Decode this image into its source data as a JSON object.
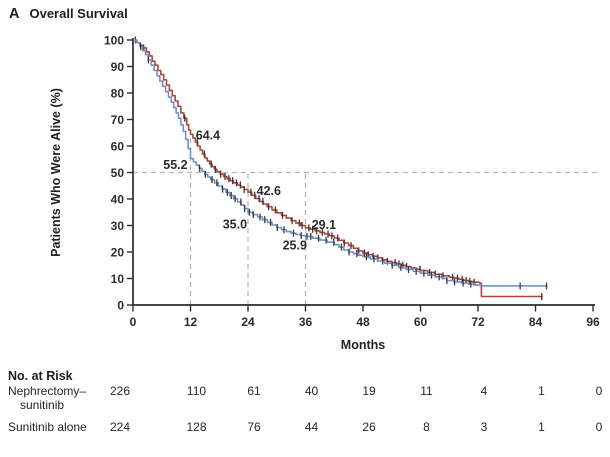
{
  "title": {
    "panel_letter": "A",
    "text": "Overall Survival"
  },
  "chart_data": {
    "type": "line",
    "subtype": "kaplan-meier-step",
    "title": "Overall Survival",
    "xlabel": "Months",
    "ylabel": "Patients Who Were Alive (%)",
    "xlim": [
      0,
      96
    ],
    "ylim": [
      0,
      100
    ],
    "x_ticks": [
      0,
      12,
      24,
      36,
      48,
      60,
      72,
      84,
      96
    ],
    "y_ticks": [
      0,
      10,
      20,
      30,
      40,
      50,
      60,
      70,
      80,
      90,
      100
    ],
    "grid": false,
    "legend": "none",
    "reference_lines": {
      "horizontal_pct": 50,
      "vertical": [
        {
          "month": 12,
          "top_pct": 64.4
        },
        {
          "month": 24,
          "top_pct": 50
        },
        {
          "month": 36,
          "top_pct": 50
        }
      ]
    },
    "landmark_survival": {
      "months": [
        12,
        24,
        36
      ],
      "nephrectomy_sunitinib_pct": [
        64.4,
        42.6,
        29.1
      ],
      "sunitinib_alone_pct": [
        55.2,
        35.0,
        25.9
      ]
    },
    "annotations": [
      {
        "label": "64.4",
        "month": 13.1,
        "pct": 62.5,
        "anchor": "start"
      },
      {
        "label": "55.2",
        "month": 11.4,
        "pct": 51.3,
        "anchor": "end"
      },
      {
        "label": "42.6",
        "month": 25.8,
        "pct": 41.6,
        "anchor": "start"
      },
      {
        "label": "35.0",
        "month": 23.8,
        "pct": 28.8,
        "anchor": "end"
      },
      {
        "label": "29.1",
        "month": 37.3,
        "pct": 28.6,
        "anchor": "start"
      },
      {
        "label": "25.9",
        "month": 36.3,
        "pct": 21.0,
        "anchor": "end"
      }
    ],
    "series": [
      {
        "name": "Nephrectomy–sunitinib",
        "color": "#b0463a",
        "points": [
          [
            0,
            100
          ],
          [
            0.8,
            99
          ],
          [
            1.5,
            98
          ],
          [
            2.2,
            97
          ],
          [
            2.8,
            95.5
          ],
          [
            3.4,
            94
          ],
          [
            4,
            92
          ],
          [
            4.6,
            90.5
          ],
          [
            5.2,
            88.5
          ],
          [
            5.8,
            87
          ],
          [
            6.4,
            85
          ],
          [
            7,
            83
          ],
          [
            7.6,
            81
          ],
          [
            8.2,
            79
          ],
          [
            8.8,
            77
          ],
          [
            9.4,
            75
          ],
          [
            10,
            72.5
          ],
          [
            10.6,
            70.5
          ],
          [
            11.2,
            68
          ],
          [
            11.6,
            66
          ],
          [
            12,
            64.4
          ],
          [
            12.5,
            63
          ],
          [
            13,
            61.5
          ],
          [
            13.5,
            60
          ],
          [
            14,
            58.5
          ],
          [
            14.5,
            57
          ],
          [
            15,
            55.5
          ],
          [
            15.5,
            54.3
          ],
          [
            16,
            53.2
          ],
          [
            16.5,
            52.2
          ],
          [
            17,
            51.2
          ],
          [
            17.5,
            50.3
          ],
          [
            18.2,
            49.4
          ],
          [
            18.9,
            48.5
          ],
          [
            19.6,
            47.7
          ],
          [
            20.3,
            46.9
          ],
          [
            21,
            46.1
          ],
          [
            21.8,
            45.3
          ],
          [
            22.5,
            44.5
          ],
          [
            23.2,
            43.6
          ],
          [
            24,
            42.6
          ],
          [
            24.8,
            41.4
          ],
          [
            25.6,
            40.2
          ],
          [
            26.4,
            39.1
          ],
          [
            27.2,
            38.1
          ],
          [
            28,
            37.1
          ],
          [
            29,
            35.9
          ],
          [
            30,
            34.8
          ],
          [
            31,
            33.8
          ],
          [
            32,
            32.8
          ],
          [
            33,
            31.8
          ],
          [
            34,
            30.9
          ],
          [
            35,
            30
          ],
          [
            36,
            29.1
          ],
          [
            37,
            28.6
          ],
          [
            38,
            28
          ],
          [
            39,
            27.4
          ],
          [
            40,
            26.8
          ],
          [
            41,
            26.1
          ],
          [
            42,
            25.3
          ],
          [
            43,
            24.4
          ],
          [
            44,
            23.4
          ],
          [
            45,
            22.4
          ],
          [
            46,
            21.4
          ],
          [
            47,
            20.4
          ],
          [
            48,
            19.6
          ],
          [
            49,
            19
          ],
          [
            50,
            18.4
          ],
          [
            51,
            17.8
          ],
          [
            52,
            17.1
          ],
          [
            53,
            16.5
          ],
          [
            54,
            16
          ],
          [
            55,
            15.5
          ],
          [
            56,
            15
          ],
          [
            57,
            14.5
          ],
          [
            58,
            14
          ],
          [
            59,
            13.5
          ],
          [
            60,
            13
          ],
          [
            61.5,
            12.3
          ],
          [
            63,
            11.6
          ],
          [
            64.5,
            11
          ],
          [
            66,
            10.5
          ],
          [
            67,
            10.1
          ],
          [
            68,
            9.7
          ],
          [
            69,
            9.3
          ],
          [
            70,
            8.9
          ],
          [
            71,
            8.6
          ],
          [
            72.3,
            8.3
          ],
          [
            72.7,
            3.2
          ],
          [
            85.5,
            3.2
          ]
        ],
        "censor_months": [
          0.5,
          2.2,
          10.8,
          13.4,
          14.9,
          16.3,
          17.2,
          18.3,
          19.2,
          20,
          20.8,
          21.6,
          22.4,
          23.2,
          24.6,
          25.4,
          26.3,
          27.1,
          28.3,
          29.7,
          31.2,
          33.2,
          34.7,
          35.3,
          36.7,
          37.5,
          38.3,
          39.5,
          40.7,
          41.5,
          42.7,
          44.1,
          45.5,
          47.1,
          48.3,
          49.1,
          50.1,
          51.1,
          53.1,
          54.7,
          55.5,
          56.3,
          57.1,
          59.9,
          61.9,
          63.1,
          64.7,
          66.7,
          67.7,
          68.7,
          69.5,
          70.3,
          71.2,
          85.3
        ]
      },
      {
        "name": "Sunitinib alone",
        "color": "#7092c2",
        "points": [
          [
            0,
            100
          ],
          [
            0.7,
            99
          ],
          [
            1.4,
            97.5
          ],
          [
            2,
            96
          ],
          [
            2.6,
            94.5
          ],
          [
            3.2,
            92.5
          ],
          [
            3.8,
            90.5
          ],
          [
            4.4,
            88.5
          ],
          [
            5,
            86.5
          ],
          [
            5.6,
            84.5
          ],
          [
            6.2,
            82.5
          ],
          [
            6.8,
            80.5
          ],
          [
            7.4,
            78.5
          ],
          [
            8,
            76.5
          ],
          [
            8.5,
            74.5
          ],
          [
            9,
            72.5
          ],
          [
            9.5,
            70.5
          ],
          [
            10,
            68
          ],
          [
            10.5,
            65.5
          ],
          [
            11,
            62.5
          ],
          [
            11.5,
            59
          ],
          [
            12,
            55.2
          ],
          [
            12.6,
            54
          ],
          [
            13.2,
            52.8
          ],
          [
            13.8,
            51.6
          ],
          [
            14.4,
            50.4
          ],
          [
            15,
            49.3
          ],
          [
            15.6,
            48.3
          ],
          [
            16.2,
            47.3
          ],
          [
            17,
            46.1
          ],
          [
            17.8,
            44.9
          ],
          [
            18.6,
            43.7
          ],
          [
            19.4,
            42.5
          ],
          [
            20.2,
            41.3
          ],
          [
            21,
            40.1
          ],
          [
            21.8,
            38.9
          ],
          [
            22.6,
            37.7
          ],
          [
            23.3,
            36.4
          ],
          [
            24,
            35
          ],
          [
            25,
            34.1
          ],
          [
            26,
            33.2
          ],
          [
            27,
            32.2
          ],
          [
            28,
            31.2
          ],
          [
            29,
            30.2
          ],
          [
            30,
            29.2
          ],
          [
            31,
            28.4
          ],
          [
            32,
            27.7
          ],
          [
            33,
            27.1
          ],
          [
            34,
            26.6
          ],
          [
            35,
            26.2
          ],
          [
            36,
            25.9
          ],
          [
            37.5,
            25.2
          ],
          [
            39,
            24.5
          ],
          [
            40.5,
            23.7
          ],
          [
            42,
            22.8
          ],
          [
            43,
            21.8
          ],
          [
            44,
            20.8
          ],
          [
            45,
            20
          ],
          [
            46,
            19.4
          ],
          [
            47,
            18.8
          ],
          [
            48,
            18.2
          ],
          [
            49.5,
            17.4
          ],
          [
            51,
            16.6
          ],
          [
            52.5,
            15.8
          ],
          [
            54,
            15
          ],
          [
            55.5,
            14.2
          ],
          [
            57,
            13.4
          ],
          [
            58.5,
            12.7
          ],
          [
            60,
            12
          ],
          [
            61.5,
            11.3
          ],
          [
            63,
            10.6
          ],
          [
            64.5,
            10
          ],
          [
            65.5,
            9.2
          ],
          [
            67,
            8.7
          ],
          [
            68.5,
            8.3
          ],
          [
            70,
            7.9
          ],
          [
            71.5,
            7.5
          ],
          [
            72.5,
            7.2
          ],
          [
            86.5,
            7.2
          ]
        ],
        "censor_months": [
          1.6,
          3.2,
          13.9,
          15.1,
          16.5,
          17.5,
          18.7,
          19.7,
          20.5,
          21.3,
          22.5,
          23.3,
          24.3,
          25.1,
          26.5,
          27.5,
          28.7,
          30.1,
          31.5,
          33.5,
          35.1,
          36.3,
          37.1,
          38.7,
          40.3,
          41.9,
          43.5,
          45.1,
          46.7,
          48.7,
          50.3,
          52.1,
          54.1,
          55.9,
          57.5,
          59.1,
          60.7,
          62.3,
          63.9,
          65.5,
          67.1,
          68.9,
          70.5,
          80.8,
          86.3
        ]
      }
    ],
    "colors": {
      "axis": "#2b2b30",
      "censor_tick": "#3a3a3e",
      "reference_dash": "#b5b5b5",
      "text": "#26262b"
    }
  },
  "risk_table": {
    "heading": "No. at Risk",
    "time_points": [
      0,
      12,
      24,
      36,
      48,
      60,
      72,
      84,
      96
    ],
    "rows": [
      {
        "label_line1": "Nephrectomy–",
        "label_line2": "sunitinib",
        "counts": [
          226,
          110,
          61,
          40,
          19,
          11,
          4,
          1,
          0
        ]
      },
      {
        "label_line1": "Sunitinib alone",
        "label_line2": "",
        "counts": [
          224,
          128,
          76,
          44,
          26,
          8,
          3,
          1,
          0
        ]
      }
    ]
  }
}
